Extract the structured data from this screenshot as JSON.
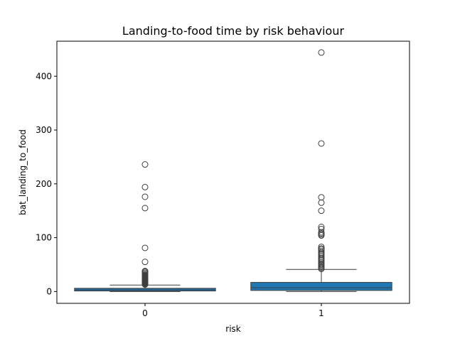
{
  "chart_data": {
    "type": "box",
    "title": "Landing-to-food time by risk behaviour",
    "xlabel": "risk",
    "ylabel": "bat_landing_to_food",
    "categories": [
      "0",
      "1"
    ],
    "ylim": [
      -22,
      465
    ],
    "yticks": [
      0,
      100,
      200,
      300,
      400
    ],
    "grid": false,
    "box_color": "#1f77b4",
    "boxes": [
      {
        "category": "0",
        "q1": 1,
        "median": 3,
        "q3": 6,
        "whisker_low": 0,
        "whisker_high": 12,
        "outliers": [
          13,
          14,
          15,
          16,
          17,
          18,
          19,
          20,
          21,
          22,
          23,
          24,
          25,
          26,
          27,
          28,
          29,
          30,
          31,
          33,
          35,
          37,
          38,
          55,
          81,
          155,
          176,
          194,
          236
        ]
      },
      {
        "category": "1",
        "q1": 2,
        "median": 7,
        "q3": 17,
        "whisker_low": 0,
        "whisker_high": 41,
        "outliers": [
          42,
          44,
          46,
          48,
          50,
          52,
          55,
          58,
          60,
          62,
          65,
          68,
          70,
          72,
          75,
          78,
          80,
          83,
          104,
          106,
          108,
          110,
          116,
          120,
          150,
          165,
          175,
          275,
          444
        ]
      }
    ]
  }
}
